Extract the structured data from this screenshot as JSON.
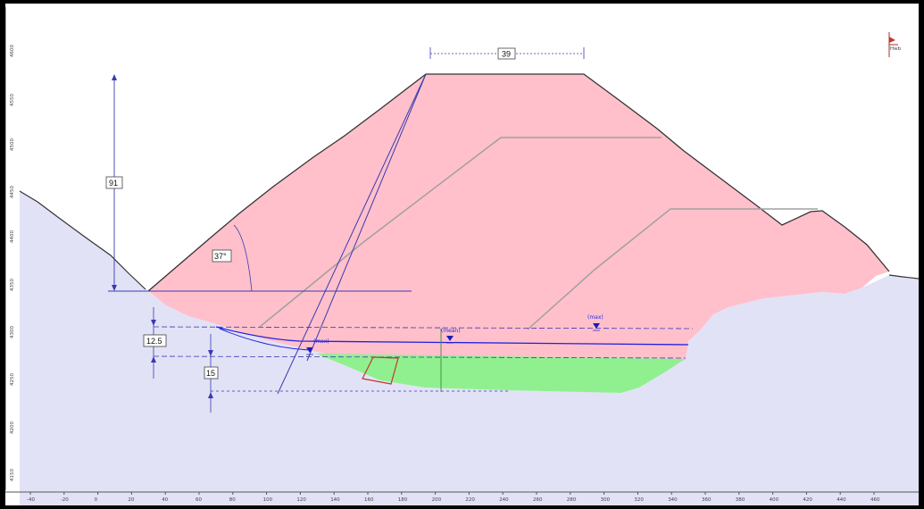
{
  "dimensions": {
    "crest_width": "39",
    "dam_height": "91",
    "slope_angle": "37°",
    "depth_upper": "12.5",
    "depth_lower": "15"
  },
  "water_levels": {
    "label_left": "(max)",
    "label_center": "(mean)",
    "label_right": "(max)"
  },
  "logo_text": "Hwb",
  "y_axis_ticks": [
    "4600",
    "4550",
    "4500",
    "4450",
    "4400",
    "4350",
    "4300",
    "4250",
    "4200",
    "4150",
    "4100"
  ],
  "x_axis_ticks": [
    "-40",
    "-20",
    "0",
    "20",
    "40",
    "60",
    "80",
    "100",
    "120",
    "140",
    "160",
    "180",
    "200",
    "220",
    "240",
    "260",
    "280",
    "300",
    "320",
    "340",
    "360",
    "380",
    "400",
    "420",
    "440",
    "460"
  ],
  "colors": {
    "embankment": "#ffc0cb",
    "foundation": "#e2e2f6",
    "clay_layer": "#90f090",
    "dimension_lines": "#3a3ab0",
    "water_line": "#2222dd",
    "outline": "#333333"
  }
}
